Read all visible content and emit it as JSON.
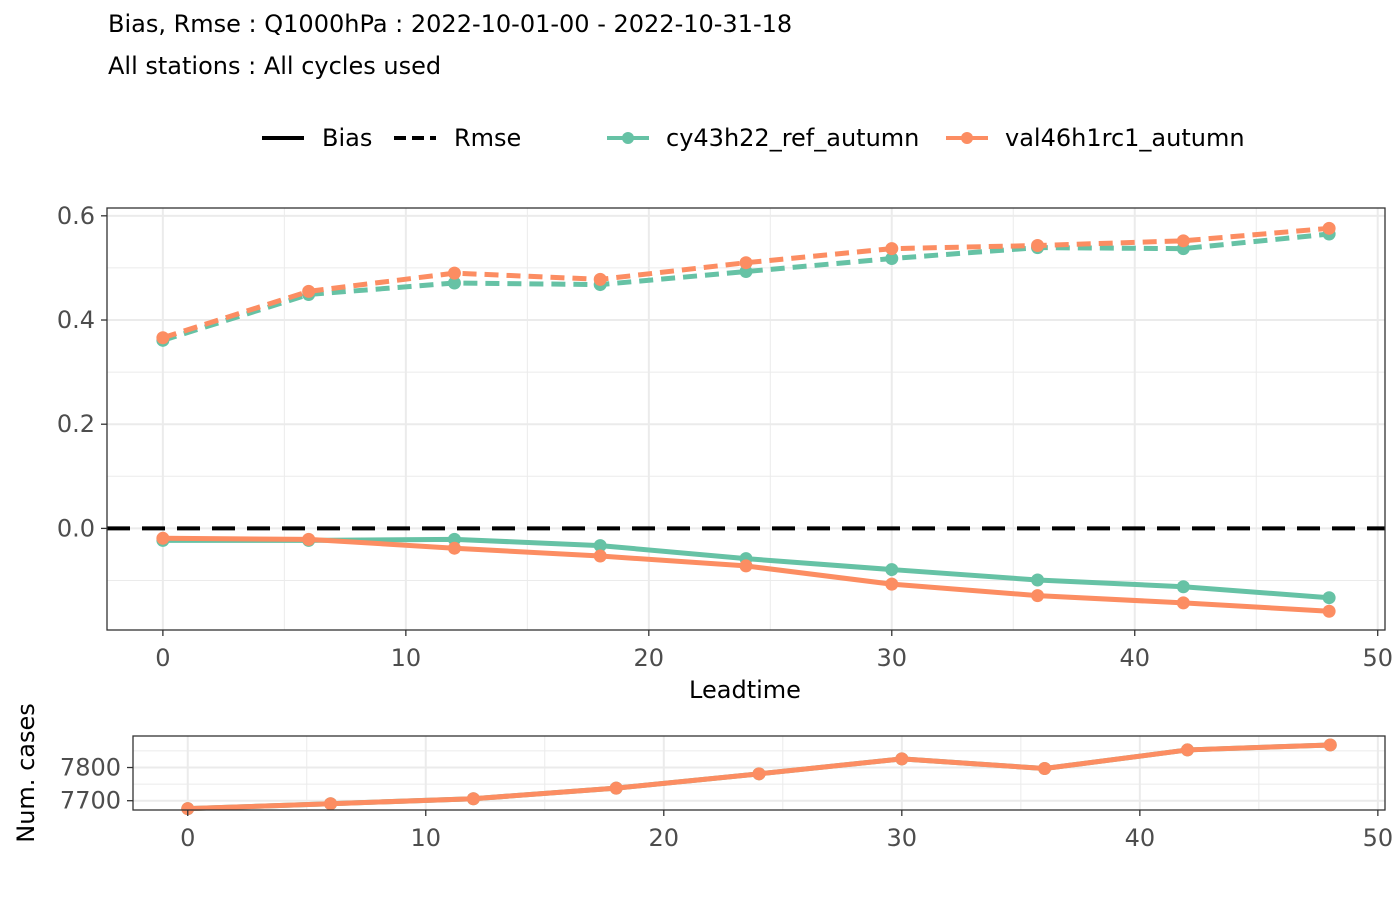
{
  "title": "Bias, Rmse : Q1000hPa : 2022-10-01-00 - 2022-10-31-18",
  "subtitle": "All stations : All cycles used",
  "legend": {
    "linetypes": [
      "Bias",
      "Rmse"
    ],
    "models": [
      "cy43h22_ref_autumn",
      "val46h1rc1_autumn"
    ]
  },
  "colors": {
    "cy43h22_ref_autumn": "#66c2a5",
    "val46h1rc1_autumn": "#fc8d62",
    "zero_line": "#000000"
  },
  "chart_data": [
    {
      "type": "line",
      "xlabel": "Leadtime",
      "ylabel": "",
      "xlim": [
        -2.3,
        50.3
      ],
      "ylim": [
        -0.195,
        0.615
      ],
      "xticks": [
        0,
        10,
        20,
        30,
        40,
        50
      ],
      "yticks": [
        0.0,
        0.2,
        0.4,
        0.6
      ],
      "ytick_labels": [
        "0.0",
        "0.2",
        "0.4",
        "0.6"
      ],
      "hline": 0,
      "grid": true,
      "legend_position": "top",
      "x": [
        0,
        6,
        12,
        18,
        24,
        30,
        36,
        42,
        48
      ],
      "series": [
        {
          "name": "cy43h22_ref_autumn",
          "metric": "Bias",
          "values": [
            -0.023,
            -0.023,
            -0.021,
            -0.033,
            -0.058,
            -0.079,
            -0.099,
            -0.112,
            -0.133
          ]
        },
        {
          "name": "val46h1rc1_autumn",
          "metric": "Bias",
          "values": [
            -0.019,
            -0.021,
            -0.038,
            -0.053,
            -0.072,
            -0.107,
            -0.129,
            -0.143,
            -0.159
          ]
        },
        {
          "name": "cy43h22_ref_autumn",
          "metric": "Rmse",
          "values": [
            0.361,
            0.449,
            0.471,
            0.468,
            0.493,
            0.518,
            0.539,
            0.537,
            0.565
          ]
        },
        {
          "name": "val46h1rc1_autumn",
          "metric": "Rmse",
          "values": [
            0.366,
            0.455,
            0.49,
            0.478,
            0.51,
            0.537,
            0.543,
            0.552,
            0.576
          ]
        }
      ]
    },
    {
      "type": "line",
      "xlabel": "",
      "ylabel": "Num. cases",
      "xlim": [
        -2.3,
        50.3
      ],
      "ylim": [
        7672,
        7895
      ],
      "xticks": [
        0,
        10,
        20,
        30,
        40,
        50
      ],
      "yticks": [
        7700,
        7800
      ],
      "ytick_labels": [
        "7700",
        "7800"
      ],
      "grid": true,
      "x": [
        0,
        6,
        12,
        18,
        24,
        30,
        36,
        42,
        48
      ],
      "series": [
        {
          "name": "cy43h22_ref_autumn",
          "values": [
            7676,
            7691,
            7706,
            7738,
            7781,
            7826,
            7797,
            7853,
            7868
          ]
        },
        {
          "name": "val46h1rc1_autumn",
          "values": [
            7676,
            7691,
            7706,
            7738,
            7781,
            7826,
            7797,
            7853,
            7868
          ]
        }
      ]
    }
  ]
}
